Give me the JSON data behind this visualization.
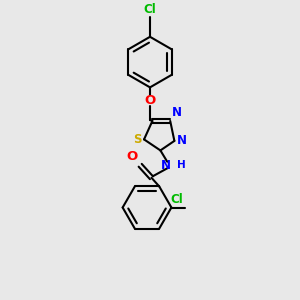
{
  "background_color": "#e8e8e8",
  "bond_color": "#000000",
  "bond_width": 1.5,
  "atom_colors": {
    "Cl": "#00bb00",
    "O": "#ff0000",
    "S": "#ccaa00",
    "N": "#0000ff",
    "NH": "#0000ff",
    "O_carbonyl": "#ff0000"
  },
  "font_size": 8.5
}
